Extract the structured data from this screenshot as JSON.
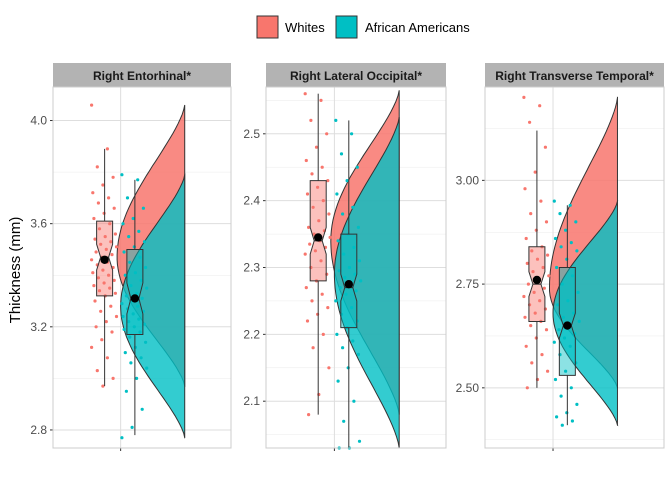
{
  "chart_data": {
    "type": "raincloud",
    "ylabel": "Thickness (mm)",
    "legend": {
      "position": "top",
      "entries": [
        {
          "name": "Whites",
          "color": "#F8766D"
        },
        {
          "name": "African Americans",
          "color": "#00BFC4"
        }
      ]
    },
    "grid": true,
    "panels": [
      {
        "title": "Right Entorhinal*",
        "ylim": [
          2.73,
          4.13
        ],
        "yticks": [
          {
            "value": 2.8,
            "label": "2.8"
          },
          {
            "value": 3.2,
            "label": "3.2"
          },
          {
            "value": 3.6,
            "label": "3.6"
          },
          {
            "value": 4.0,
            "label": "4.0"
          }
        ],
        "groups": [
          {
            "name": "Whites",
            "color": "#F8766D",
            "box": {
              "whisker_low": 2.97,
              "q1": 3.32,
              "median": 3.47,
              "q3": 3.61,
              "whisker_high": 3.89,
              "notch_low": 3.42,
              "notch_high": 3.52
            },
            "mean": 3.46,
            "density": {
              "min": 2.97,
              "max": 4.06,
              "peak": 3.47
            },
            "points": [
              4.06,
              3.89,
              3.82,
              3.78,
              3.75,
              3.72,
              3.7,
              3.68,
              3.66,
              3.64,
              3.62,
              3.6,
              3.58,
              3.56,
              3.55,
              3.54,
              3.53,
              3.52,
              3.51,
              3.5,
              3.49,
              3.48,
              3.47,
              3.46,
              3.45,
              3.44,
              3.43,
              3.42,
              3.41,
              3.4,
              3.39,
              3.38,
              3.37,
              3.36,
              3.35,
              3.34,
              3.33,
              3.32,
              3.3,
              3.28,
              3.26,
              3.24,
              3.22,
              3.2,
              3.18,
              3.15,
              3.12,
              3.08,
              3.03,
              3.0,
              2.97
            ]
          },
          {
            "name": "African Americans",
            "color": "#00BFC4",
            "box": {
              "whisker_low": 2.78,
              "q1": 3.17,
              "median": 3.31,
              "q3": 3.5,
              "whisker_high": 3.77,
              "notch_low": 3.25,
              "notch_high": 3.37
            },
            "mean": 3.31,
            "density": {
              "min": 2.77,
              "max": 3.79,
              "peak": 3.28
            },
            "points": [
              3.79,
              3.77,
              3.7,
              3.66,
              3.62,
              3.6,
              3.57,
              3.55,
              3.53,
              3.51,
              3.49,
              3.47,
              3.45,
              3.43,
              3.41,
              3.4,
              3.38,
              3.36,
              3.35,
              3.33,
              3.32,
              3.31,
              3.3,
              3.29,
              3.28,
              3.27,
              3.26,
              3.25,
              3.24,
              3.23,
              3.22,
              3.21,
              3.2,
              3.19,
              3.18,
              3.16,
              3.14,
              3.12,
              3.1,
              3.08,
              3.06,
              3.04,
              3.0,
              2.95,
              2.88,
              2.81,
              2.77
            ]
          }
        ]
      },
      {
        "title": "Right Lateral Occipital*",
        "ylim": [
          2.03,
          2.57
        ],
        "yticks": [
          {
            "value": 2.1,
            "label": "2.1"
          },
          {
            "value": 2.2,
            "label": "2.2"
          },
          {
            "value": 2.3,
            "label": "2.3"
          },
          {
            "value": 2.4,
            "label": "2.4"
          },
          {
            "value": 2.5,
            "label": "2.5"
          }
        ],
        "groups": [
          {
            "name": "Whites",
            "color": "#F8766D",
            "box": {
              "whisker_low": 2.08,
              "q1": 2.28,
              "median": 2.34,
              "q3": 2.43,
              "whisker_high": 2.56,
              "notch_low": 2.32,
              "notch_high": 2.36
            },
            "mean": 2.345,
            "density": {
              "min": 2.08,
              "max": 2.565,
              "peak": 2.34
            },
            "points": [
              2.56,
              2.55,
              2.52,
              2.5,
              2.48,
              2.46,
              2.45,
              2.44,
              2.43,
              2.42,
              2.41,
              2.4,
              2.39,
              2.38,
              2.37,
              2.36,
              2.355,
              2.35,
              2.345,
              2.34,
              2.335,
              2.33,
              2.325,
              2.32,
              2.31,
              2.3,
              2.29,
              2.28,
              2.27,
              2.26,
              2.25,
              2.24,
              2.23,
              2.22,
              2.2,
              2.18,
              2.15,
              2.11,
              2.08
            ]
          },
          {
            "name": "African Americans",
            "color": "#00BFC4",
            "box": {
              "whisker_low": 2.03,
              "q1": 2.21,
              "median": 2.27,
              "q3": 2.35,
              "whisker_high": 2.52,
              "notch_low": 2.25,
              "notch_high": 2.29
            },
            "mean": 2.275,
            "density": {
              "min": 2.03,
              "max": 2.525,
              "peak": 2.29
            },
            "points": [
              2.52,
              2.5,
              2.47,
              2.45,
              2.43,
              2.41,
              2.39,
              2.38,
              2.36,
              2.35,
              2.34,
              2.33,
              2.32,
              2.31,
              2.3,
              2.295,
              2.29,
              2.285,
              2.28,
              2.275,
              2.27,
              2.265,
              2.26,
              2.25,
              2.24,
              2.23,
              2.22,
              2.21,
              2.2,
              2.19,
              2.18,
              2.17,
              2.15,
              2.13,
              2.1,
              2.07,
              2.04,
              2.03,
              2.03
            ]
          }
        ]
      },
      {
        "title": "Right Transverse Temporal*",
        "ylim": [
          2.355,
          3.225
        ],
        "yticks": [
          {
            "value": 2.5,
            "label": "2.50"
          },
          {
            "value": 2.75,
            "label": "2.75"
          },
          {
            "value": 3.0,
            "label": "3.00"
          }
        ],
        "groups": [
          {
            "name": "Whites",
            "color": "#F8766D",
            "box": {
              "whisker_low": 2.5,
              "q1": 2.66,
              "median": 2.75,
              "q3": 2.84,
              "whisker_high": 3.12,
              "notch_low": 2.72,
              "notch_high": 2.78
            },
            "mean": 2.76,
            "density": {
              "min": 2.5,
              "max": 3.2,
              "peak": 2.74
            },
            "points": [
              3.2,
              3.18,
              3.14,
              3.08,
              3.02,
              2.98,
              2.95,
              2.92,
              2.9,
              2.88,
              2.86,
              2.84,
              2.83,
              2.82,
              2.81,
              2.8,
              2.79,
              2.78,
              2.77,
              2.76,
              2.75,
              2.74,
              2.73,
              2.72,
              2.71,
              2.7,
              2.69,
              2.68,
              2.67,
              2.66,
              2.65,
              2.64,
              2.62,
              2.6,
              2.58,
              2.56,
              2.54,
              2.52,
              2.5
            ]
          },
          {
            "name": "African Americans",
            "color": "#00BFC4",
            "box": {
              "whisker_low": 2.41,
              "q1": 2.53,
              "median": 2.65,
              "q3": 2.79,
              "whisker_high": 2.94,
              "notch_low": 2.62,
              "notch_high": 2.68
            },
            "mean": 2.65,
            "density": {
              "min": 2.41,
              "max": 2.95,
              "peak": 2.68
            },
            "points": [
              2.95,
              2.94,
              2.92,
              2.9,
              2.88,
              2.86,
              2.85,
              2.84,
              2.83,
              2.81,
              2.79,
              2.77,
              2.75,
              2.73,
              2.71,
              2.7,
              2.68,
              2.67,
              2.66,
              2.65,
              2.64,
              2.63,
              2.62,
              2.61,
              2.6,
              2.58,
              2.56,
              2.54,
              2.52,
              2.5,
              2.48,
              2.46,
              2.44,
              2.43,
              2.42,
              2.41
            ]
          }
        ]
      }
    ]
  }
}
